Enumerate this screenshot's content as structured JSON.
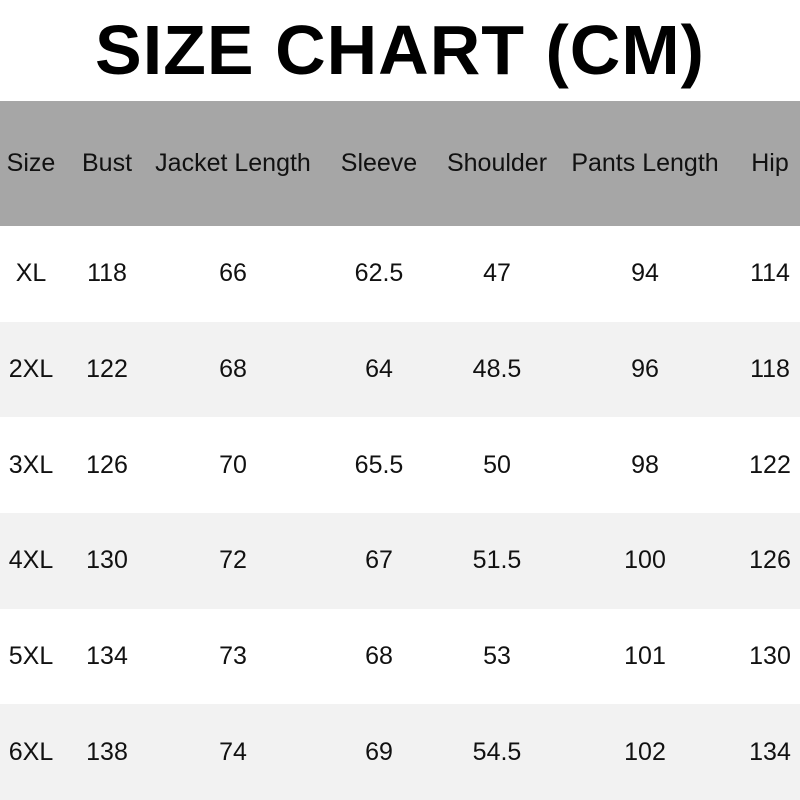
{
  "title": "SIZE CHART (CM)",
  "colors": {
    "header_bg": "#a6a6a6",
    "alt_row_bg": "#f2f2f2"
  },
  "table": {
    "headers": [
      "Size",
      "Bust",
      "Jacket Length",
      "Sleeve",
      "Shoulder",
      "Pants Length",
      "Hip"
    ],
    "rows": [
      [
        "XL",
        "118",
        "66",
        "62.5",
        "47",
        "94",
        "114"
      ],
      [
        "2XL",
        "122",
        "68",
        "64",
        "48.5",
        "96",
        "118"
      ],
      [
        "3XL",
        "126",
        "70",
        "65.5",
        "50",
        "98",
        "122"
      ],
      [
        "4XL",
        "130",
        "72",
        "67",
        "51.5",
        "100",
        "126"
      ],
      [
        "5XL",
        "134",
        "73",
        "68",
        "53",
        "101",
        "130"
      ],
      [
        "6XL",
        "138",
        "74",
        "69",
        "54.5",
        "102",
        "134"
      ]
    ]
  }
}
